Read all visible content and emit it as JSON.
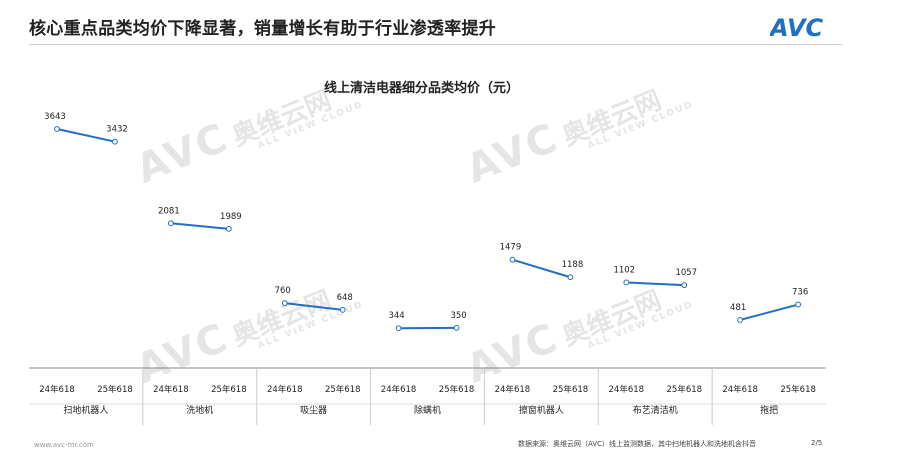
{
  "header": {
    "title": "核心重点品类均价下降显著，销量增长有助于行业渗透率提升",
    "logo_text": "AVC"
  },
  "watermark": {
    "brand": "AVC",
    "cn": "奥维云网",
    "en": "ALL VIEW CLOUD"
  },
  "footer": {
    "site": "www.avc-mr.com",
    "source": "数据来源：奥维云网（AVC）线上监测数据，其中扫地机器人和洗地机含抖音",
    "page": "2/5"
  },
  "colors": {
    "line": "#1f6fc5",
    "marker_fill": "#ffffff",
    "axis": "#888888",
    "text": "#222222",
    "logo": "#1f6fc5"
  },
  "chart_data": {
    "type": "line",
    "title": "线上清洁电器细分品类均价（元）",
    "x_labels": [
      "24年618",
      "25年618"
    ],
    "groups": [
      {
        "category": "扫地机器人",
        "values": [
          3643,
          3432
        ]
      },
      {
        "category": "洗地机",
        "values": [
          2081,
          1989
        ]
      },
      {
        "category": "吸尘器",
        "values": [
          760,
          648
        ]
      },
      {
        "category": "除螨机",
        "values": [
          344,
          350
        ]
      },
      {
        "category": "擦窗机器人",
        "values": [
          1479,
          1188
        ]
      },
      {
        "category": "布艺清洁机",
        "values": [
          1102,
          1057
        ]
      },
      {
        "category": "拖把",
        "values": [
          481,
          736
        ]
      }
    ]
  }
}
